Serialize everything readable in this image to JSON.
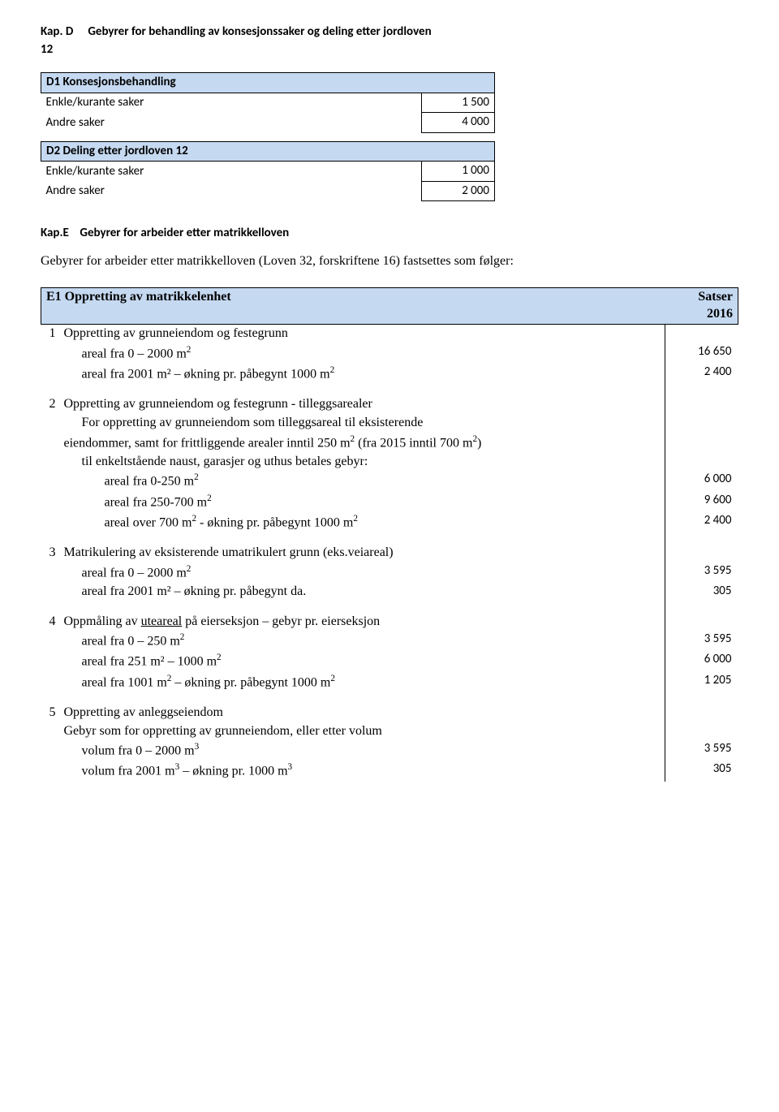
{
  "kapD": {
    "label": "Kap. D",
    "title": "Gebyrer for behandling av konsesjonssaker og deling etter jordloven",
    "para": "12",
    "d1": {
      "header": "D1  Konsesjonsbehandling",
      "rows": [
        {
          "label": "Enkle/kurante saker",
          "value": "1 500"
        },
        {
          "label": "Andre saker",
          "value": "4 000"
        }
      ]
    },
    "d2": {
      "header": "D2 Deling etter jordloven 12",
      "rows": [
        {
          "label": "Enkle/kurante saker",
          "value": "1 000"
        },
        {
          "label": "Andre saker",
          "value": "2 000"
        }
      ]
    }
  },
  "kapE": {
    "label": "Kap.E",
    "title": "Gebyrer for arbeider etter matrikkelloven",
    "desc": "Gebyrer for arbeider etter matrikkelloven (Loven 32, forskriftene 16) fastsettes som følger:",
    "e1header": {
      "left": "E1 Oppretting av matrikkelenhet",
      "right": "Satser 2016"
    },
    "sec1": {
      "idx": "1",
      "title": "Oppretting av grunneiendom og festegrunn",
      "r1": {
        "label": "areal fra 0 – 2000 m",
        "value": "16 650"
      },
      "r2": {
        "label": "areal fra 2001 m² – økning pr. påbegynt 1000 m",
        "value": "2 400"
      }
    },
    "sec2": {
      "idx": "2",
      "title": "Oppretting av grunneiendom og festegrunn - tilleggsarealer",
      "p1": "For oppretting av grunneiendom som tilleggsareal til eksisterende",
      "p2a": "eiendommer, samt for frittliggende arealer inntil 250 m",
      "p2b": " (fra 2015 inntil 700 m",
      "p2c": ")",
      "p3": "til enkeltstående naust, garasjer og uthus betales gebyr:",
      "r1": {
        "label": "areal fra 0-250 m",
        "value": "6 000"
      },
      "r2": {
        "label": "areal fra 250-700 m",
        "value": "9 600"
      },
      "r3": {
        "label_a": "areal over 700 m",
        "label_b": "  - økning pr. påbegynt 1000 m",
        "value": "2 400"
      }
    },
    "sec3": {
      "idx": "3",
      "title": "Matrikulering av eksisterende umatrikulert grunn (eks.veiareal)",
      "r1": {
        "label": "areal fra 0 – 2000 m",
        "value": "3 595"
      },
      "r2": {
        "label": "areal fra 2001 m² – økning pr. påbegynt da.",
        "value": "305"
      }
    },
    "sec4": {
      "idx": "4",
      "title_a": "Oppmåling av ",
      "title_u": "uteareal",
      "title_b": " på eierseksjon – gebyr pr. eierseksjon",
      "r1": {
        "label": "areal fra 0 – 250 m",
        "value": "3 595"
      },
      "r2": {
        "label": "areal fra 251 m² – 1000 m",
        "value": "6 000"
      },
      "r3": {
        "label_a": "areal fra 1001 m",
        "label_b": " – økning pr. påbegynt 1000 m",
        "value": "1 205"
      }
    },
    "sec5": {
      "idx": "5",
      "title": "Oppretting av anleggseiendom",
      "sub": "Gebyr som for oppretting av grunneiendom, eller etter volum",
      "r1": {
        "label": "volum fra 0 – 2000 m",
        "value": "3 595"
      },
      "r2": {
        "label_a": "volum fra 2001 m",
        "label_b": " – økning pr. 1000 m",
        "value": "305"
      }
    }
  }
}
